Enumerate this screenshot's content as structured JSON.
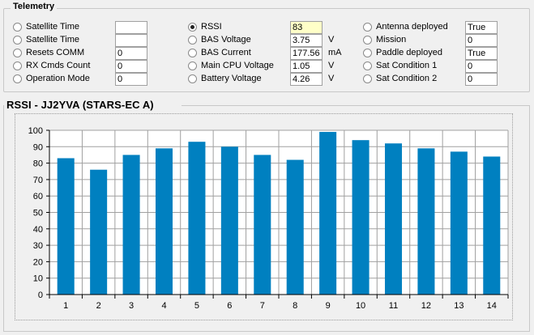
{
  "telemetry": {
    "title": "Telemetry",
    "columns": [
      {
        "items": [
          {
            "label": "Satellite Time",
            "value": "",
            "unit": "",
            "selected": false
          },
          {
            "label": "Satellite Time",
            "value": "",
            "unit": "",
            "selected": false
          },
          {
            "label": "Resets COMM",
            "value": "0",
            "unit": "",
            "selected": false
          },
          {
            "label": "RX Cmds Count",
            "value": "0",
            "unit": "",
            "selected": false
          },
          {
            "label": "Operation Mode",
            "value": "0",
            "unit": "",
            "selected": false
          }
        ]
      },
      {
        "items": [
          {
            "label": "RSSI",
            "value": "83",
            "unit": "",
            "selected": true
          },
          {
            "label": "BAS Voltage",
            "value": "3.75",
            "unit": "V",
            "selected": false
          },
          {
            "label": "BAS Current",
            "value": "177.56",
            "unit": "mA",
            "selected": false
          },
          {
            "label": "Main CPU Voltage",
            "value": "1.05",
            "unit": "V",
            "selected": false
          },
          {
            "label": "Battery Voltage",
            "value": "4.26",
            "unit": "V",
            "selected": false
          }
        ]
      },
      {
        "items": [
          {
            "label": "Antenna deployed",
            "value": "True",
            "unit": "",
            "selected": false
          },
          {
            "label": "Mission",
            "value": "0",
            "unit": "",
            "selected": false
          },
          {
            "label": "Paddle deployed",
            "value": "True",
            "unit": "",
            "selected": false
          },
          {
            "label": "Sat Condition 1",
            "value": "0",
            "unit": "",
            "selected": false
          },
          {
            "label": "Sat Condition 2",
            "value": "0",
            "unit": "",
            "selected": false
          }
        ]
      }
    ]
  },
  "chart_data": {
    "type": "bar",
    "title": "RSSI - JJ2YVA (STARS-EC A)",
    "categories": [
      "1",
      "2",
      "3",
      "4",
      "5",
      "6",
      "7",
      "8",
      "9",
      "10",
      "11",
      "12",
      "13",
      "14"
    ],
    "values": [
      83,
      76,
      85,
      89,
      93,
      90,
      85,
      82,
      99,
      94,
      92,
      89,
      87,
      84
    ],
    "ylim": [
      0,
      100
    ],
    "yticks": [
      "0",
      "10",
      "20",
      "30",
      "40",
      "50",
      "60",
      "70",
      "80",
      "90",
      "100"
    ],
    "grid": true,
    "bar_color": "#0080c0"
  }
}
